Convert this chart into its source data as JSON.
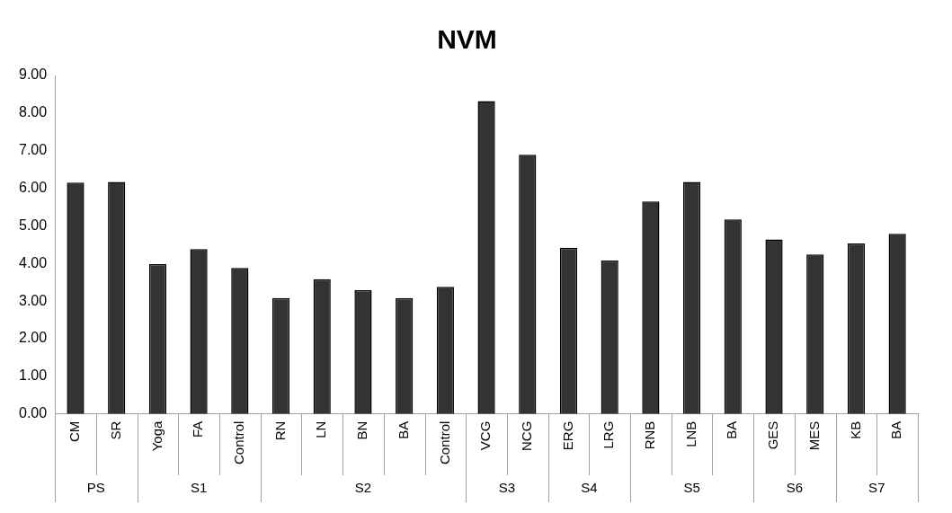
{
  "chart_data": {
    "type": "bar",
    "title": "NVM",
    "categories": [
      "CM",
      "SR",
      "Yoga",
      "FA",
      "Control",
      "RN",
      "LN",
      "BN",
      "BA",
      "Control",
      "VCG",
      "NCG",
      "ERG",
      "LRG",
      "RNB",
      "LNB",
      "BA",
      "GES",
      "MES",
      "KB",
      "BA"
    ],
    "values": [
      6.15,
      6.17,
      3.98,
      4.38,
      3.88,
      3.08,
      3.58,
      3.29,
      3.08,
      3.38,
      8.32,
      6.89,
      4.42,
      4.08,
      5.65,
      6.17,
      5.17,
      4.64,
      4.24,
      4.53,
      4.79
    ],
    "color": "#333333",
    "ylim": [
      0,
      9
    ],
    "yticks": [
      {
        "value": 0,
        "label": "0.00"
      },
      {
        "value": 1,
        "label": "1.00"
      },
      {
        "value": 2,
        "label": "2.00"
      },
      {
        "value": 3,
        "label": "3.00"
      },
      {
        "value": 4,
        "label": "4.00"
      },
      {
        "value": 5,
        "label": "5.00"
      },
      {
        "value": 6,
        "label": "6.00"
      },
      {
        "value": 7,
        "label": "7.00"
      },
      {
        "value": 8,
        "label": "8.00"
      },
      {
        "value": 9,
        "label": "9.00"
      }
    ],
    "annotations": [
      "PS",
      "S1",
      "S2",
      "S3",
      "S4",
      "S5",
      "S6",
      "S7"
    ],
    "grid": false,
    "legend": false
  }
}
